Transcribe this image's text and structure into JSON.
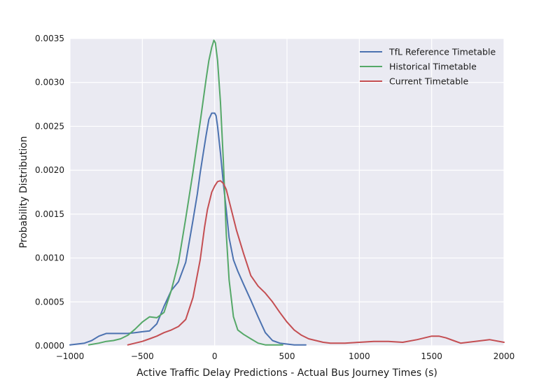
{
  "chart_data": {
    "type": "line",
    "xlabel": "Active Traffic Delay Predictions - Actual Bus Journey Times (s)",
    "ylabel": "Probability Distribution",
    "xlim": [
      -1000,
      2000
    ],
    "ylim": [
      0,
      0.0035
    ],
    "xticks": [
      -1000,
      -500,
      0,
      500,
      1000,
      1500,
      2000
    ],
    "xtick_labels": [
      "−1000",
      "−500",
      "0",
      "500",
      "1000",
      "1500",
      "2000"
    ],
    "yticks": [
      0,
      0.0005,
      0.001,
      0.0015,
      0.002,
      0.0025,
      0.003,
      0.0035
    ],
    "ytick_labels": [
      "0.0000",
      "0.0005",
      "0.0010",
      "0.0015",
      "0.0020",
      "0.0025",
      "0.0030",
      "0.0035"
    ],
    "grid": true,
    "background": "#EAEAF2",
    "legend_position": "top-right",
    "series": [
      {
        "name": "TfL Reference Timetable",
        "color": "#4C72B0",
        "x": [
          -1000,
          -900,
          -850,
          -800,
          -750,
          -700,
          -650,
          -600,
          -550,
          -500,
          -450,
          -400,
          -350,
          -300,
          -250,
          -200,
          -150,
          -120,
          -100,
          -80,
          -60,
          -40,
          -20,
          0,
          10,
          20,
          40,
          60,
          80,
          100,
          130,
          160,
          200,
          250,
          300,
          350,
          400,
          450,
          500,
          550,
          600,
          630
        ],
        "y": [
          1e-05,
          3e-05,
          6e-05,
          0.00011,
          0.00014,
          0.00014,
          0.00014,
          0.00014,
          0.00015,
          0.00016,
          0.00017,
          0.00025,
          0.00045,
          0.00063,
          0.00073,
          0.00095,
          0.00143,
          0.00173,
          0.00197,
          0.00218,
          0.00239,
          0.00258,
          0.00265,
          0.00265,
          0.00262,
          0.0025,
          0.0022,
          0.00185,
          0.00155,
          0.00123,
          0.00098,
          0.00085,
          0.0007,
          0.00052,
          0.00033,
          0.00015,
          6e-05,
          3e-05,
          2e-05,
          1e-05,
          1e-05,
          1e-05
        ]
      },
      {
        "name": "Historical Timetable",
        "color": "#55A868",
        "x": [
          -870,
          -800,
          -750,
          -700,
          -650,
          -600,
          -550,
          -500,
          -450,
          -400,
          -350,
          -300,
          -250,
          -200,
          -150,
          -100,
          -60,
          -40,
          -20,
          -5,
          5,
          20,
          40,
          60,
          80,
          100,
          130,
          160,
          200,
          250,
          300,
          350,
          400,
          470
        ],
        "y": [
          1e-05,
          3e-05,
          5e-05,
          6e-05,
          8e-05,
          0.00012,
          0.00019,
          0.00027,
          0.00033,
          0.00032,
          0.00038,
          0.00063,
          0.00095,
          0.00145,
          0.00198,
          0.00255,
          0.00303,
          0.00325,
          0.0034,
          0.00348,
          0.00345,
          0.00325,
          0.00278,
          0.0021,
          0.00128,
          0.00075,
          0.00033,
          0.00018,
          0.00013,
          8e-05,
          3e-05,
          1e-05,
          1e-05,
          1e-05
        ]
      },
      {
        "name": "Current Timetable",
        "color": "#C44E52",
        "x": [
          -600,
          -550,
          -500,
          -450,
          -400,
          -350,
          -300,
          -250,
          -200,
          -150,
          -100,
          -70,
          -50,
          -20,
          0,
          20,
          40,
          60,
          80,
          100,
          150,
          200,
          250,
          300,
          350,
          400,
          450,
          500,
          550,
          600,
          650,
          700,
          750,
          800,
          900,
          1000,
          1100,
          1200,
          1300,
          1400,
          1500,
          1550,
          1600,
          1650,
          1700,
          1750,
          1800,
          1900,
          2000
        ],
        "y": [
          1e-05,
          3e-05,
          5e-05,
          8e-05,
          0.00011,
          0.00015,
          0.00018,
          0.00022,
          0.0003,
          0.00055,
          0.00098,
          0.00135,
          0.00155,
          0.00175,
          0.00182,
          0.00187,
          0.00188,
          0.00185,
          0.00178,
          0.00165,
          0.00132,
          0.00105,
          0.0008,
          0.00068,
          0.0006,
          0.0005,
          0.00038,
          0.00027,
          0.00018,
          0.00012,
          8e-05,
          6e-05,
          4e-05,
          3e-05,
          3e-05,
          4e-05,
          5e-05,
          5e-05,
          4e-05,
          7e-05,
          0.00011,
          0.00011,
          9e-05,
          6e-05,
          3e-05,
          4e-05,
          5e-05,
          7e-05,
          4e-05
        ]
      }
    ]
  }
}
